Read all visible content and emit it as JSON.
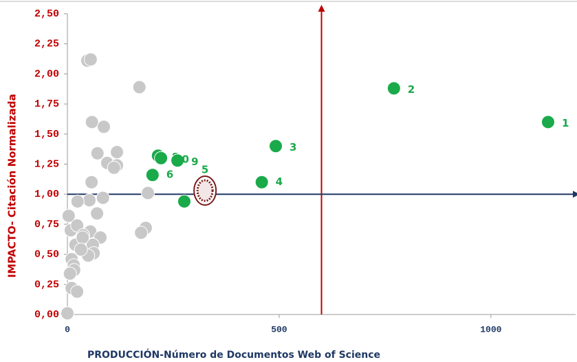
{
  "chart_data": {
    "type": "scatter",
    "x_label": "PRODUCCIÓN-Número  de Documentos  Web of Science",
    "y_label": "IMPACTO- Citación Normalizada",
    "xlim": [
      0,
      1200
    ],
    "ylim": [
      0,
      2.5
    ],
    "xticks": [
      0,
      500,
      1000
    ],
    "yticks": [
      {
        "value": 0,
        "label": "0,00"
      },
      {
        "value": 0.25,
        "label": "0,25"
      },
      {
        "value": 0.5,
        "label": "0,50"
      },
      {
        "value": 0.75,
        "label": "0,75"
      },
      {
        "value": 1,
        "label": "1,00"
      },
      {
        "value": 1.25,
        "label": "1,25"
      },
      {
        "value": 1.5,
        "label": "1,50"
      },
      {
        "value": 1.75,
        "label": "1,75"
      },
      {
        "value": 2,
        "label": "2,00"
      },
      {
        "value": 2.25,
        "label": "2,25"
      },
      {
        "value": 2.5,
        "label": "2,50"
      }
    ],
    "reference_x": 600,
    "reference_x_color": "#c00000",
    "reference_y": 1,
    "reference_y_color": "#1f3864",
    "series": [
      {
        "color": "#c8c8c8",
        "x": [
          47,
          55,
          170,
          58,
          86,
          71,
          94,
          117,
          117,
          110,
          57,
          84,
          190,
          52,
          24,
          70,
          185,
          174,
          3,
          8,
          23,
          54,
          37,
          78,
          19,
          60,
          10,
          62,
          49,
          15,
          16,
          6,
          10,
          23,
          0,
          36,
          32
        ],
        "values": [
          2.11,
          2.12,
          1.89,
          1.6,
          1.56,
          1.34,
          1.26,
          1.35,
          1.24,
          1.22,
          1.1,
          0.97,
          1.01,
          0.95,
          0.94,
          0.84,
          0.72,
          0.68,
          0.82,
          0.7,
          0.74,
          0.69,
          0.66,
          0.64,
          0.58,
          0.58,
          0.46,
          0.51,
          0.49,
          0.41,
          0.37,
          0.34,
          0.22,
          0.19,
          0.01,
          0.64,
          0.54
        ]
      },
      {
        "color": "#1aaa4a",
        "highlight_index": 4,
        "x": [
          1135,
          771,
          492,
          459,
          325,
          201,
          276,
          214,
          260,
          221
        ],
        "values": [
          1.6,
          1.88,
          1.4,
          1.1,
          1.03,
          1.16,
          0.94,
          1.32,
          1.28,
          1.3
        ],
        "labels": [
          "1",
          "2",
          "3",
          "4",
          "5",
          "6",
          null,
          "8",
          "9",
          "10"
        ]
      }
    ]
  }
}
